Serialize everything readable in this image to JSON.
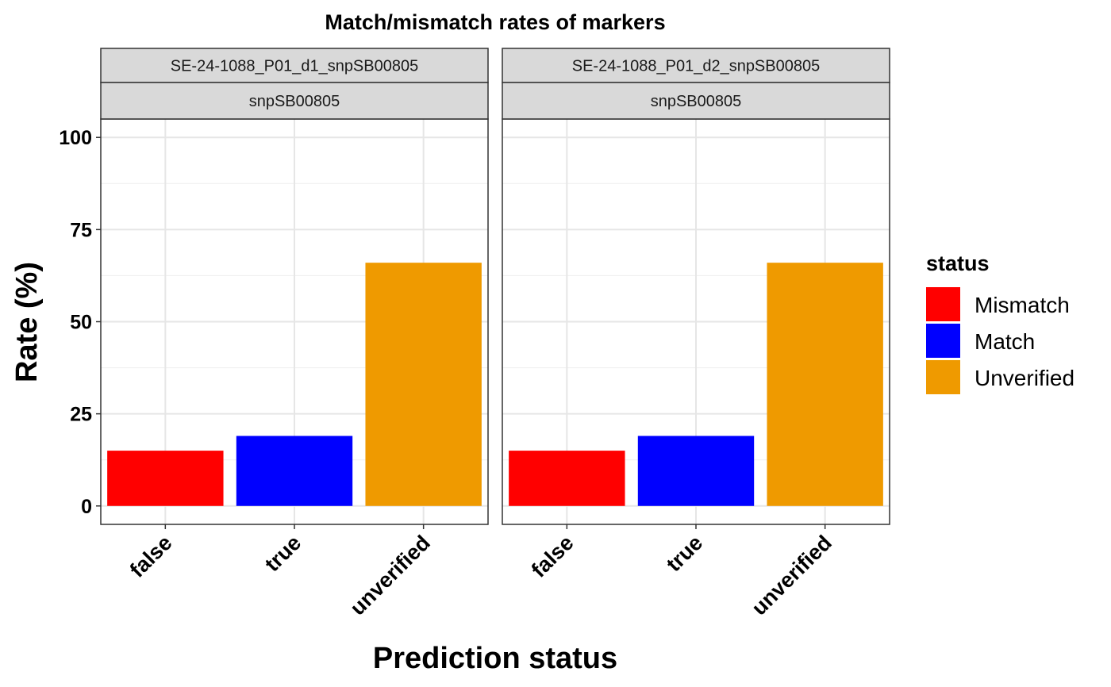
{
  "chart_data": {
    "type": "bar",
    "title": "Match/mismatch rates of markers",
    "xlabel": "Prediction status",
    "ylabel": "Rate (%)",
    "ylim": [
      -5,
      105
    ],
    "yticks": [
      0,
      25,
      50,
      75,
      100
    ],
    "categories": [
      "false",
      "true",
      "unverified"
    ],
    "grid": true,
    "legend": {
      "title": "status",
      "placement": "right",
      "items": [
        {
          "label": "Mismatch",
          "color": "#ff0000"
        },
        {
          "label": "Match",
          "color": "#0000ff"
        },
        {
          "label": "Unverified",
          "color": "#ef9a00"
        }
      ]
    },
    "panels": [
      {
        "strip_top": "SE-24-1088_P01_d1_snpSB00805",
        "strip_bottom": "snpSB00805",
        "values": [
          15,
          19,
          66
        ]
      },
      {
        "strip_top": "SE-24-1088_P01_d2_snpSB00805",
        "strip_bottom": "snpSB00805",
        "values": [
          15,
          19,
          66
        ]
      }
    ]
  }
}
